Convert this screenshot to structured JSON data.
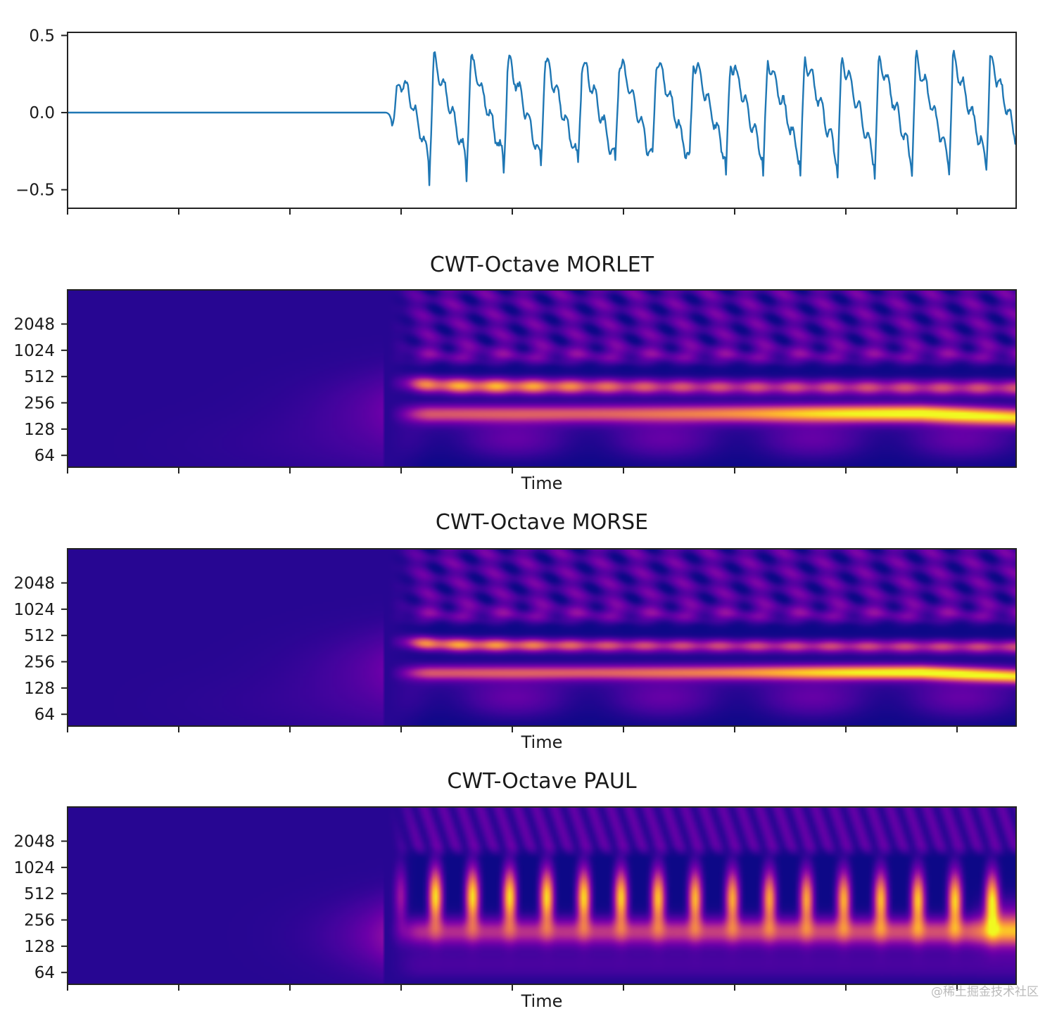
{
  "chart_data": [
    {
      "type": "line",
      "title": "",
      "xlabel": "",
      "ylabel": "",
      "ylim": [
        -0.62,
        0.52
      ],
      "yticks": [
        0.5,
        0.0,
        -0.5
      ],
      "ytick_labels": [
        "0.5",
        "0.0",
        "−0.5"
      ],
      "xtick_count": 9,
      "xtick_labels_shown": false,
      "series": [
        {
          "color": "#1f77b4",
          "signal": {
            "samples": 1020,
            "onset_fraction": 0.335,
            "cycles_after_onset": 17,
            "amplitude_peak": 0.38,
            "amplitude_trough": -0.5,
            "baseline": 0.0
          }
        }
      ]
    },
    {
      "type": "heatmap",
      "title": "CWT-Octave MORLET",
      "xlabel": "Time",
      "ylabel": "",
      "colormap": "plasma",
      "yticks": [
        2048,
        1024,
        512,
        256,
        128,
        64
      ],
      "ytick_labels": [
        "2048",
        "1024",
        "512",
        "256",
        "128",
        "64"
      ],
      "ylim_log2": [
        5.55,
        12.3
      ],
      "onset_fraction": 0.335,
      "bands": [
        {
          "scale": 400,
          "peak_time_fraction": 0.44,
          "level": 1.0
        },
        {
          "scale": 190,
          "peak_time_fraction": 0.89,
          "level": 1.0
        }
      ],
      "xtick_count": 9,
      "xtick_labels_shown": false
    },
    {
      "type": "heatmap",
      "title": "CWT-Octave MORSE",
      "xlabel": "Time",
      "ylabel": "",
      "colormap": "plasma",
      "yticks": [
        2048,
        1024,
        512,
        256,
        128,
        64
      ],
      "ytick_labels": [
        "2048",
        "1024",
        "512",
        "256",
        "128",
        "64"
      ],
      "ylim_log2": [
        5.55,
        12.3
      ],
      "onset_fraction": 0.335,
      "bands": [
        {
          "scale": 400,
          "peak_time_fraction": 0.4,
          "level": 0.95
        },
        {
          "scale": 190,
          "peak_time_fraction": 0.9,
          "level": 1.0
        }
      ],
      "xtick_count": 9,
      "xtick_labels_shown": false
    },
    {
      "type": "heatmap",
      "title": "CWT-Octave PAUL",
      "xlabel": "Time",
      "ylabel": "",
      "colormap": "plasma",
      "yticks": [
        2048,
        1024,
        512,
        256,
        128,
        64
      ],
      "ytick_labels": [
        "2048",
        "1024",
        "512",
        "256",
        "128",
        "64"
      ],
      "ylim_log2": [
        5.55,
        12.3
      ],
      "onset_fraction": 0.335,
      "pulses_after_onset": 17,
      "xtick_count": 9,
      "xtick_labels_shown": false
    }
  ],
  "watermark": "@稀土掘金技术社区"
}
